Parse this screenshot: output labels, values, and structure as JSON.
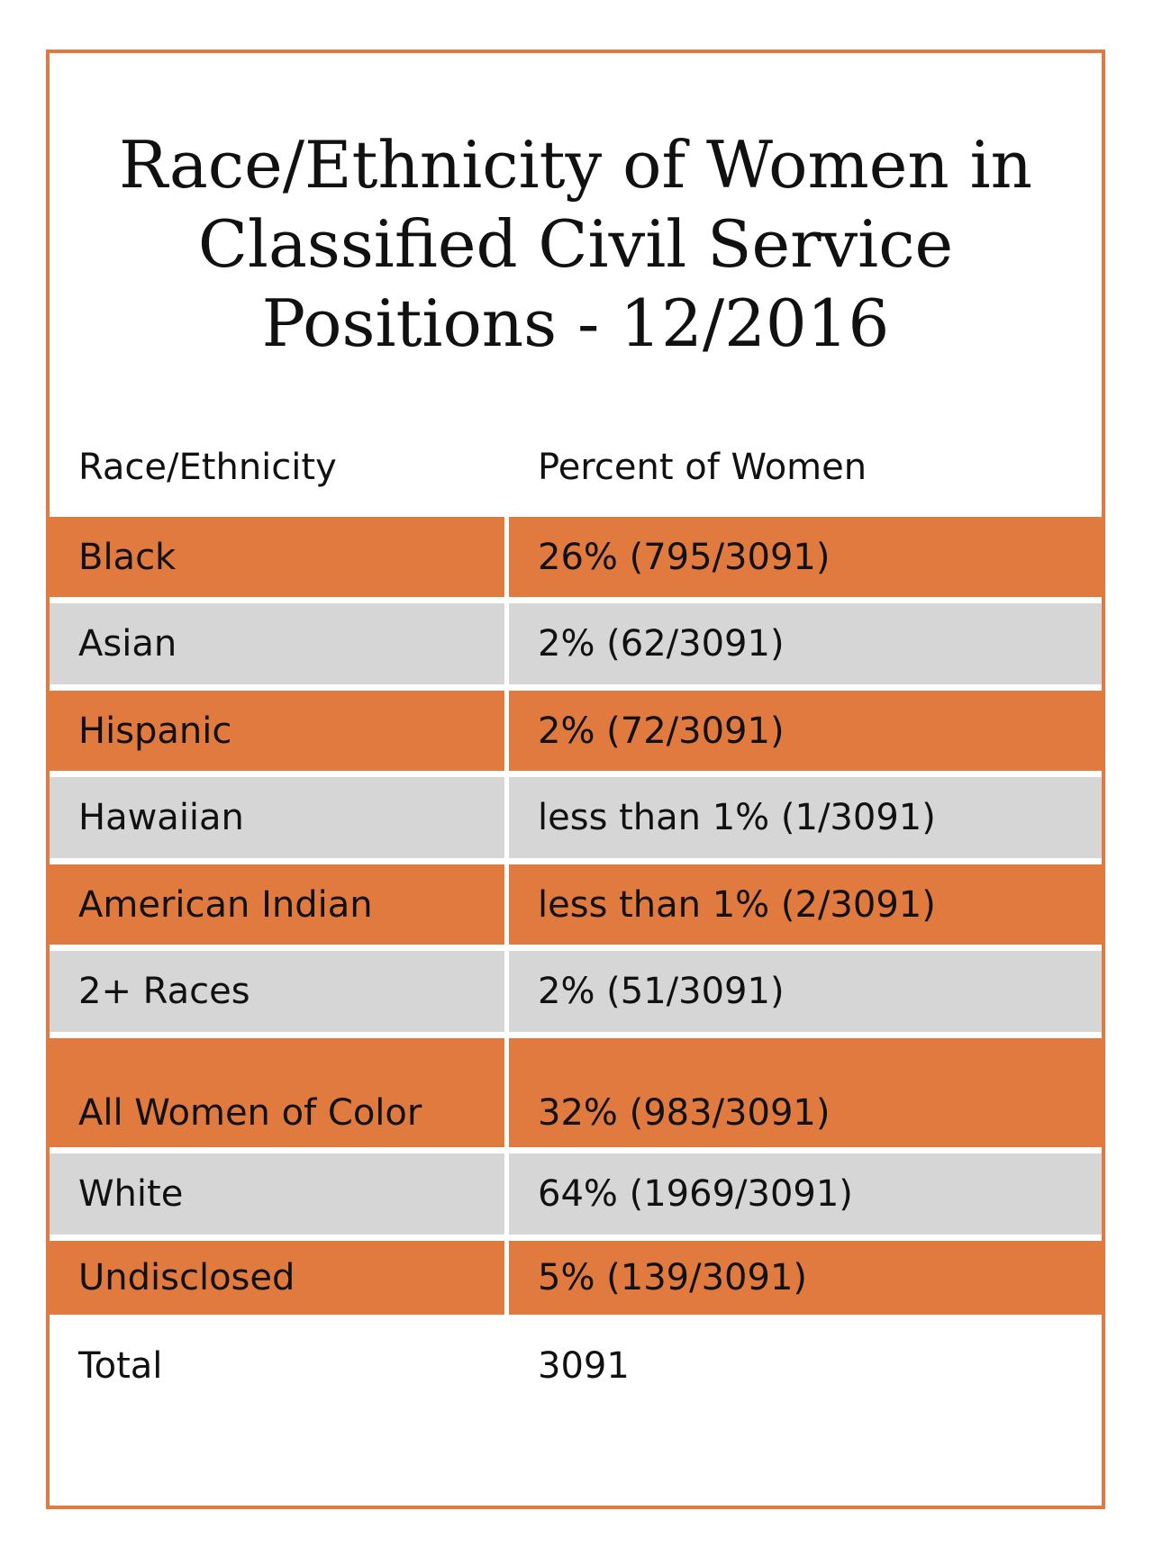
{
  "chart_data": {
    "type": "table",
    "title": "Race/Ethnicity of Women in Classified Civil Service Positions - 12/2016",
    "title_lines": [
      "Race/Ethnicity of Women in",
      "Classified Civil Service",
      "Positions - 12/2016"
    ],
    "columns": [
      "Race/Ethnicity",
      "Percent of Women"
    ],
    "rows": [
      {
        "label": "Black",
        "value": "26% (795/3091)",
        "style": "orange"
      },
      {
        "label": "Asian",
        "value": "2% (62/3091)",
        "style": "gray"
      },
      {
        "label": "Hispanic",
        "value": "2% (72/3091)",
        "style": "orange"
      },
      {
        "label": "Hawaiian",
        "value": "less than 1% (1/3091)",
        "style": "gray"
      },
      {
        "label": "American Indian",
        "value": "less than 1% (2/3091)",
        "style": "orange"
      },
      {
        "label": "2+ Races",
        "value": "2% (51/3091)",
        "style": "gray"
      },
      {
        "label": "All Women of Color",
        "value": "32% (983/3091)",
        "style": "orange"
      },
      {
        "label": "White",
        "value": "64% (1969/3091)",
        "style": "gray"
      },
      {
        "label": "Undisclosed",
        "value": "5% (139/3091)",
        "style": "orange"
      },
      {
        "label": "Total",
        "value": "3091",
        "style": "plain"
      }
    ]
  },
  "colors": {
    "orange": "#e07a3e",
    "gray": "#d6d6d6",
    "border": "#e07a3e"
  }
}
